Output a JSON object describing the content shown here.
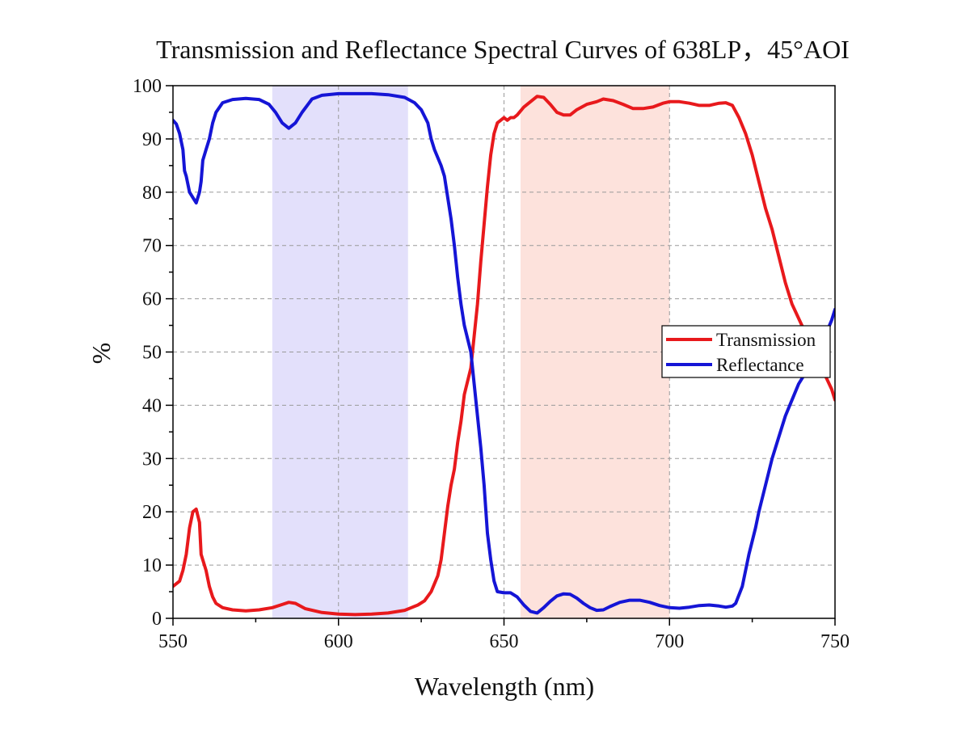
{
  "chart_data": {
    "type": "line",
    "title": "Transmission and Reflectance Spectral Curves of 638LP，45°AOI",
    "xlabel": "Wavelength (nm)",
    "ylabel": "%",
    "xlim": [
      550,
      750
    ],
    "ylim": [
      0,
      100
    ],
    "x_ticks": [
      550,
      600,
      650,
      700,
      750
    ],
    "y_ticks": [
      0,
      10,
      20,
      30,
      40,
      50,
      60,
      70,
      80,
      90,
      100
    ],
    "grid": true,
    "legend_position": "right",
    "bands": [
      {
        "x_range": [
          580,
          621
        ],
        "color": "#e3e0fb"
      },
      {
        "x_range": [
          655,
          700
        ],
        "color": "#fde2dc"
      }
    ],
    "series": [
      {
        "name": "Transmission",
        "color": "#e8191c",
        "points": [
          [
            550,
            6
          ],
          [
            551,
            6.5
          ],
          [
            552,
            7
          ],
          [
            553,
            9
          ],
          [
            554,
            12
          ],
          [
            555,
            17
          ],
          [
            556,
            20
          ],
          [
            557,
            20.5
          ],
          [
            558,
            18
          ],
          [
            558.5,
            12
          ],
          [
            560,
            9
          ],
          [
            561,
            6
          ],
          [
            562,
            4
          ],
          [
            563,
            2.8
          ],
          [
            565,
            2
          ],
          [
            568,
            1.6
          ],
          [
            572,
            1.4
          ],
          [
            576,
            1.6
          ],
          [
            580,
            2
          ],
          [
            583,
            2.6
          ],
          [
            585,
            3
          ],
          [
            587,
            2.8
          ],
          [
            590,
            1.8
          ],
          [
            595,
            1.1
          ],
          [
            600,
            0.8
          ],
          [
            605,
            0.7
          ],
          [
            610,
            0.8
          ],
          [
            615,
            1
          ],
          [
            620,
            1.5
          ],
          [
            624,
            2.5
          ],
          [
            626,
            3.3
          ],
          [
            628,
            5
          ],
          [
            630,
            8
          ],
          [
            631,
            11
          ],
          [
            632,
            16
          ],
          [
            633,
            21
          ],
          [
            634,
            25
          ],
          [
            635,
            28
          ],
          [
            636,
            33
          ],
          [
            637,
            37
          ],
          [
            638,
            42
          ],
          [
            640,
            47
          ],
          [
            641,
            53
          ],
          [
            642,
            59
          ],
          [
            643,
            67
          ],
          [
            644,
            74
          ],
          [
            645,
            81
          ],
          [
            646,
            87
          ],
          [
            647,
            91
          ],
          [
            648,
            93
          ],
          [
            649,
            93.5
          ],
          [
            650,
            94
          ],
          [
            651,
            93.5
          ],
          [
            652,
            94
          ],
          [
            653,
            94
          ],
          [
            654,
            94.5
          ],
          [
            656,
            96
          ],
          [
            658,
            97
          ],
          [
            660,
            98
          ],
          [
            662,
            97.8
          ],
          [
            664,
            96.5
          ],
          [
            666,
            95
          ],
          [
            668,
            94.5
          ],
          [
            670,
            94.5
          ],
          [
            672,
            95.5
          ],
          [
            675,
            96.5
          ],
          [
            678,
            97
          ],
          [
            680,
            97.5
          ],
          [
            683,
            97.2
          ],
          [
            686,
            96.5
          ],
          [
            689,
            95.7
          ],
          [
            692,
            95.7
          ],
          [
            695,
            96
          ],
          [
            698,
            96.7
          ],
          [
            700,
            97
          ],
          [
            703,
            97
          ],
          [
            706,
            96.7
          ],
          [
            709,
            96.3
          ],
          [
            712,
            96.3
          ],
          [
            715,
            96.7
          ],
          [
            717,
            96.8
          ],
          [
            719,
            96.3
          ],
          [
            721,
            94
          ],
          [
            723,
            91
          ],
          [
            725,
            87
          ],
          [
            727,
            82
          ],
          [
            729,
            77
          ],
          [
            731,
            73
          ],
          [
            733,
            68
          ],
          [
            735,
            63
          ],
          [
            737,
            59
          ],
          [
            740,
            55
          ],
          [
            743,
            51
          ],
          [
            746,
            47
          ],
          [
            749,
            43
          ],
          [
            750,
            41
          ]
        ]
      },
      {
        "name": "Reflectance",
        "color": "#1515d6",
        "points": [
          [
            550,
            93.5
          ],
          [
            551,
            92.8
          ],
          [
            552,
            91
          ],
          [
            553,
            88
          ],
          [
            553.5,
            84
          ],
          [
            554,
            83
          ],
          [
            555,
            80
          ],
          [
            556,
            79
          ],
          [
            557,
            78
          ],
          [
            558,
            80
          ],
          [
            558.5,
            82
          ],
          [
            559,
            86
          ],
          [
            560,
            88
          ],
          [
            561,
            90
          ],
          [
            562,
            93
          ],
          [
            563,
            95
          ],
          [
            565,
            96.8
          ],
          [
            568,
            97.4
          ],
          [
            572,
            97.6
          ],
          [
            576,
            97.4
          ],
          [
            579,
            96.5
          ],
          [
            581,
            95
          ],
          [
            583,
            93
          ],
          [
            585,
            92
          ],
          [
            587,
            93
          ],
          [
            589,
            95
          ],
          [
            592,
            97.5
          ],
          [
            595,
            98.2
          ],
          [
            600,
            98.5
          ],
          [
            605,
            98.5
          ],
          [
            610,
            98.5
          ],
          [
            615,
            98.3
          ],
          [
            620,
            97.8
          ],
          [
            623,
            96.8
          ],
          [
            625,
            95.5
          ],
          [
            627,
            93
          ],
          [
            628,
            90
          ],
          [
            629,
            88
          ],
          [
            631,
            85
          ],
          [
            632,
            83
          ],
          [
            633,
            79
          ],
          [
            634,
            75
          ],
          [
            635,
            70
          ],
          [
            636,
            64
          ],
          [
            637,
            59
          ],
          [
            638,
            55
          ],
          [
            640,
            50
          ],
          [
            641,
            44
          ],
          [
            642,
            38
          ],
          [
            643,
            32
          ],
          [
            644,
            25
          ],
          [
            645,
            16
          ],
          [
            646,
            11
          ],
          [
            647,
            7
          ],
          [
            648,
            5
          ],
          [
            650,
            4.8
          ],
          [
            652,
            4.8
          ],
          [
            654,
            4
          ],
          [
            656,
            2.5
          ],
          [
            658,
            1.3
          ],
          [
            660,
            1
          ],
          [
            662,
            2
          ],
          [
            664,
            3.2
          ],
          [
            666,
            4.2
          ],
          [
            668,
            4.6
          ],
          [
            670,
            4.5
          ],
          [
            672,
            3.8
          ],
          [
            674,
            2.8
          ],
          [
            676,
            2
          ],
          [
            678,
            1.5
          ],
          [
            680,
            1.6
          ],
          [
            682,
            2.2
          ],
          [
            685,
            3
          ],
          [
            688,
            3.4
          ],
          [
            691,
            3.4
          ],
          [
            694,
            3
          ],
          [
            697,
            2.4
          ],
          [
            700,
            2
          ],
          [
            703,
            1.9
          ],
          [
            706,
            2.1
          ],
          [
            709,
            2.4
          ],
          [
            712,
            2.5
          ],
          [
            715,
            2.3
          ],
          [
            717,
            2.1
          ],
          [
            719,
            2.3
          ],
          [
            720,
            2.8
          ],
          [
            722,
            6
          ],
          [
            724,
            12
          ],
          [
            726,
            17
          ],
          [
            727,
            20
          ],
          [
            729,
            25
          ],
          [
            731,
            30
          ],
          [
            733,
            34
          ],
          [
            735,
            38
          ],
          [
            737,
            41
          ],
          [
            739,
            44
          ],
          [
            741,
            46
          ],
          [
            743,
            49
          ],
          [
            745,
            51
          ],
          [
            747,
            53
          ],
          [
            749,
            56
          ],
          [
            750,
            58
          ]
        ]
      }
    ]
  }
}
